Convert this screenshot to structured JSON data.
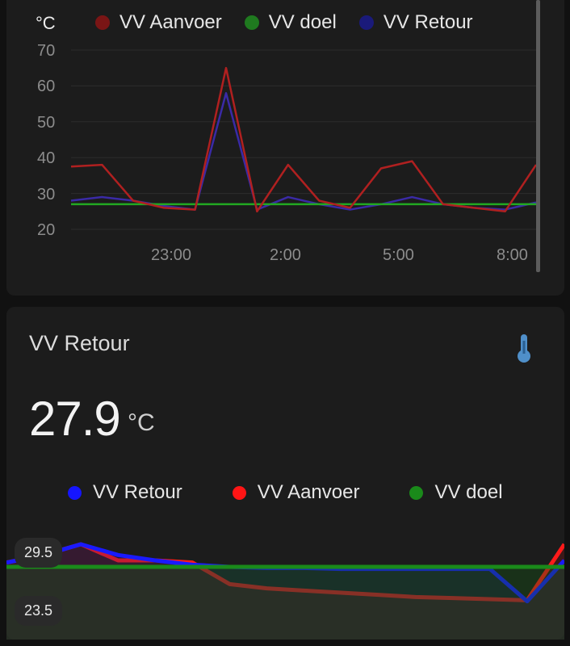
{
  "top_card": {
    "unit": "°C",
    "legend": [
      {
        "label": "VV Aanvoer",
        "color": "#7a1515"
      },
      {
        "label": "VV doel",
        "color": "#1f7a1f"
      },
      {
        "label": "VV Retour",
        "color": "#1a1a7a"
      }
    ],
    "y_ticks": [
      "70",
      "60",
      "50",
      "40",
      "30",
      "20"
    ],
    "x_ticks": [
      "23:00",
      "2:00",
      "5:00",
      "8:00"
    ]
  },
  "bottom_card": {
    "title": "VV Retour",
    "icon": "thermometer-icon",
    "value": "27.9",
    "unit": "°C",
    "legend": [
      {
        "label": "VV Retour",
        "color": "#1515ff"
      },
      {
        "label": "VV Aanvoer",
        "color": "#ff1515"
      },
      {
        "label": "VV doel",
        "color": "#1a8a1a"
      }
    ],
    "max_label": "29.5",
    "min_label": "23.5"
  },
  "chart_data": [
    {
      "type": "line",
      "title": "",
      "xlabel": "",
      "ylabel": "°C",
      "ylim": [
        20,
        70
      ],
      "x": [
        "20:00",
        "21:00",
        "22:00",
        "23:00",
        "0:00",
        "0:30",
        "1:00",
        "2:00",
        "3:00",
        "4:00",
        "4:30",
        "5:00",
        "6:00",
        "7:00",
        "8:00",
        "8:30"
      ],
      "series": [
        {
          "name": "VV Aanvoer",
          "values": [
            37.5,
            38,
            28,
            26,
            25.5,
            65,
            25,
            38,
            28,
            26,
            37,
            39,
            27,
            26,
            25,
            38
          ]
        },
        {
          "name": "VV doel",
          "values": [
            27,
            27,
            27,
            27,
            27,
            27,
            27,
            27,
            27,
            27,
            27,
            27,
            27,
            27,
            27,
            27
          ]
        },
        {
          "name": "VV Retour",
          "values": [
            28,
            29,
            28,
            26.5,
            25.5,
            58,
            25.5,
            29,
            27,
            25.5,
            27,
            29,
            27,
            26,
            25.5,
            27.5
          ]
        }
      ],
      "grid": true,
      "legend_position": "top"
    },
    {
      "type": "area",
      "title": "",
      "ylim": [
        23.5,
        29.5
      ],
      "x": [
        "1",
        "2",
        "3",
        "4",
        "5",
        "6",
        "7",
        "8",
        "9",
        "10",
        "11",
        "12",
        "13",
        "14",
        "15",
        "16"
      ],
      "series": [
        {
          "name": "VV Retour",
          "values": [
            27.8,
            28.5,
            29.5,
            28.5,
            28,
            27.6,
            27.4,
            27.3,
            27.3,
            27.2,
            27.2,
            27.2,
            27.2,
            27.2,
            24.2,
            28
          ]
        },
        {
          "name": "VV Aanvoer",
          "values": [
            27.8,
            28.5,
            29.5,
            28,
            28,
            27.8,
            25.8,
            25.4,
            25.2,
            25,
            24.8,
            24.6,
            24.5,
            24.4,
            24.3,
            29.5
          ]
        },
        {
          "name": "VV doel",
          "values": [
            27.4,
            27.4,
            27.4,
            27.4,
            27.4,
            27.4,
            27.4,
            27.4,
            27.4,
            27.4,
            27.4,
            27.4,
            27.4,
            27.4,
            27.4,
            27.4
          ]
        }
      ],
      "legend_position": "top"
    }
  ]
}
